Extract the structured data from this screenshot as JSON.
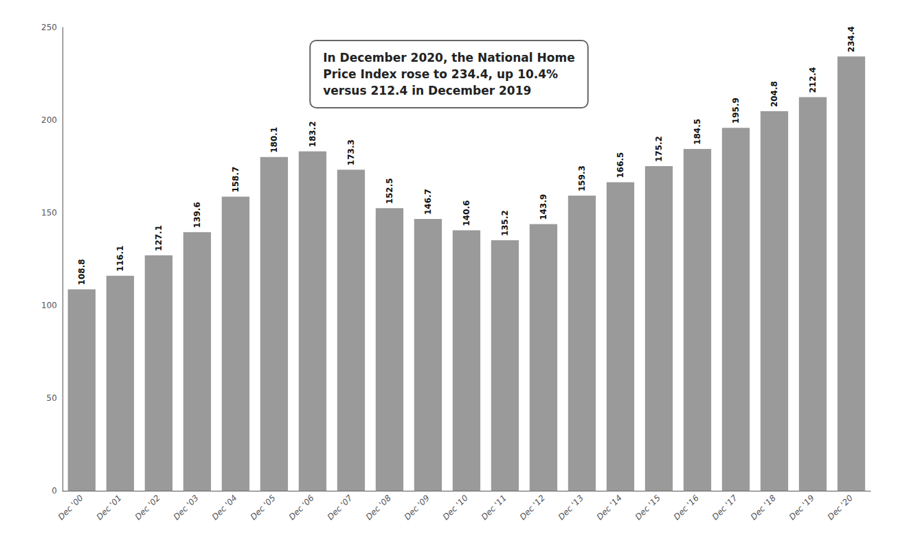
{
  "chart_data": {
    "type": "bar",
    "categories": [
      "Dec '00",
      "Dec '01",
      "Dec '02",
      "Dec '03",
      "Dec '04",
      "Dec '05",
      "Dec '06",
      "Dec '07",
      "Dec '08",
      "Dec '09",
      "Dec '10",
      "Dec '11",
      "Dec '12",
      "Dec '13",
      "Dec '14",
      "Dec '15",
      "Dec '16",
      "Dec '17",
      "Dec '18",
      "Dec '19",
      "Dec '20"
    ],
    "values": [
      108.8,
      116.1,
      127.1,
      139.6,
      158.7,
      180.1,
      183.2,
      173.3,
      152.5,
      146.7,
      140.6,
      135.2,
      143.9,
      159.3,
      166.5,
      175.2,
      184.5,
      195.9,
      204.8,
      212.4,
      234.4
    ],
    "color": "#9a9a9a",
    "ylim": [
      0,
      250
    ],
    "yticks": [
      0,
      50,
      100,
      150,
      200,
      250
    ],
    "grid": false,
    "data_labels": true,
    "annotation": "In December 2020, the National Home\nPrice Index rose to 234.4, up 10.4%\nversus 212.4 in December 2019"
  }
}
